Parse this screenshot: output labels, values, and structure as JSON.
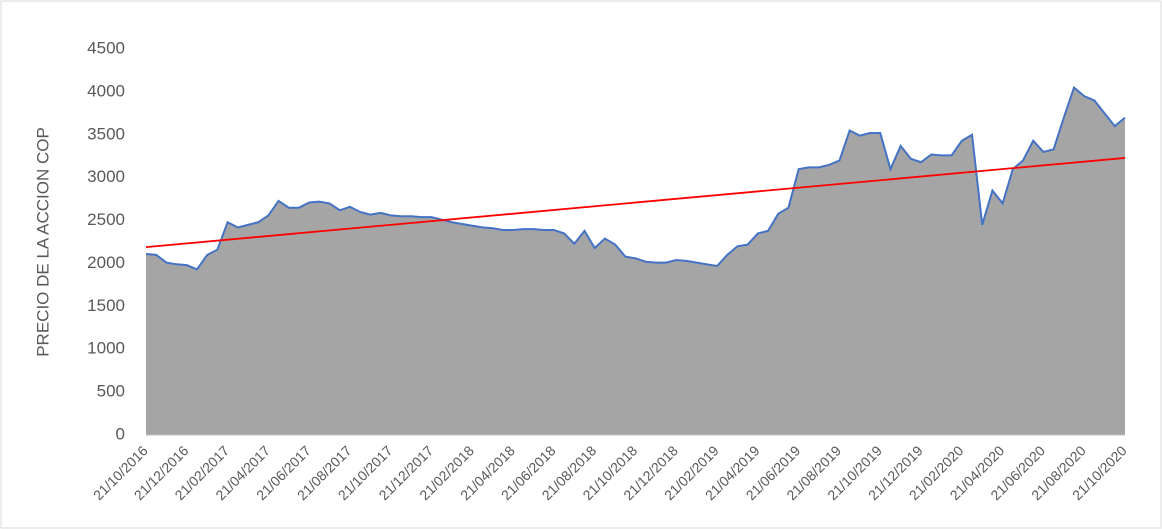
{
  "chart_data": {
    "type": "area",
    "ylabel": "PRECIO DE LA ACCION COP",
    "categories": [
      "21/10/2016",
      null,
      null,
      null,
      "21/12/2016",
      null,
      null,
      null,
      "21/02/2017",
      null,
      null,
      null,
      "21/04/2017",
      null,
      null,
      null,
      "21/06/2017",
      null,
      null,
      null,
      "21/08/2017",
      null,
      null,
      null,
      "21/10/2017",
      null,
      null,
      null,
      "21/12/2017",
      null,
      null,
      null,
      "21/02/2018",
      null,
      null,
      null,
      "21/04/2018",
      null,
      null,
      null,
      "21/06/2018",
      null,
      null,
      null,
      "21/08/2018",
      null,
      null,
      null,
      "21/10/2018",
      null,
      null,
      null,
      "21/12/2018",
      null,
      null,
      null,
      "21/02/2019",
      null,
      null,
      null,
      "21/04/2019",
      null,
      null,
      null,
      "21/06/2019",
      null,
      null,
      null,
      "21/08/2019",
      null,
      null,
      null,
      "21/10/2019",
      null,
      null,
      null,
      "21/12/2019",
      null,
      null,
      null,
      "21/02/2020",
      null,
      null,
      null,
      "21/04/2020",
      null,
      null,
      null,
      "21/06/2020",
      null,
      null,
      null,
      "21/08/2020",
      null,
      null,
      null,
      "21/10/2020"
    ],
    "values": [
      2110,
      2100,
      2010,
      1990,
      1980,
      1930,
      2100,
      2160,
      2480,
      2420,
      2450,
      2480,
      2560,
      2730,
      2650,
      2650,
      2710,
      2720,
      2700,
      2620,
      2660,
      2600,
      2570,
      2590,
      2560,
      2550,
      2550,
      2540,
      2540,
      2510,
      2480,
      2460,
      2440,
      2420,
      2410,
      2390,
      2390,
      2400,
      2400,
      2390,
      2390,
      2350,
      2230,
      2380,
      2180,
      2290,
      2220,
      2080,
      2060,
      2020,
      2010,
      2010,
      2040,
      2030,
      2010,
      1990,
      1970,
      2100,
      2200,
      2220,
      2350,
      2380,
      2580,
      2650,
      3100,
      3120,
      3120,
      3150,
      3200,
      3550,
      3490,
      3520,
      3520,
      3100,
      3370,
      3220,
      3180,
      3270,
      3260,
      3260,
      3430,
      3500,
      2450,
      2850,
      2700,
      3100,
      3200,
      3430,
      3300,
      3330,
      3700,
      4050,
      3950,
      3900,
      3750,
      3600,
      3700
    ],
    "fill_color": "#a5a5a5",
    "line_color": "#4472c4",
    "trendline": {
      "color": "#ff0000",
      "values": [
        2190,
        3230
      ]
    },
    "ylim": [
      0,
      4500
    ],
    "yticks": [
      0,
      500,
      1000,
      1500,
      2000,
      2500,
      3000,
      3500,
      4000,
      4500
    ],
    "grid": false
  }
}
